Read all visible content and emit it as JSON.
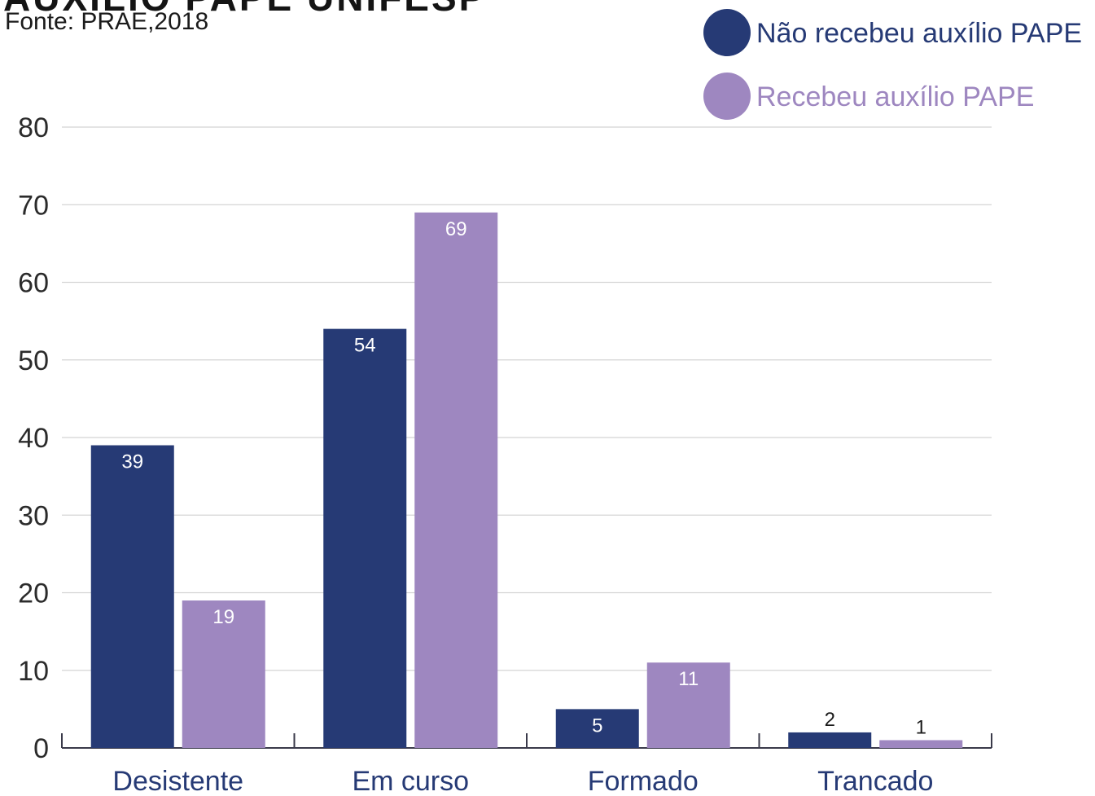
{
  "chart_data": {
    "type": "bar",
    "title": "AUXÍLIO PAPE UNIFESP",
    "source": "Fonte: PRAE,2018",
    "categories": [
      "Desistente",
      "Em curso",
      "Formado",
      "Trancado"
    ],
    "series": [
      {
        "name": "Não recebeu auxílio PAPE",
        "color": "#263a75",
        "values": [
          39,
          54,
          5,
          2
        ]
      },
      {
        "name": "Recebeu auxílio PAPE",
        "color": "#9e87c0",
        "values": [
          19,
          69,
          11,
          1
        ]
      }
    ],
    "ylim": [
      0,
      80
    ],
    "yticks": [
      0,
      10,
      20,
      30,
      40,
      50,
      60,
      70,
      80
    ],
    "xlabel": "",
    "ylabel": "",
    "grid": true,
    "legend_position": "top-right"
  }
}
